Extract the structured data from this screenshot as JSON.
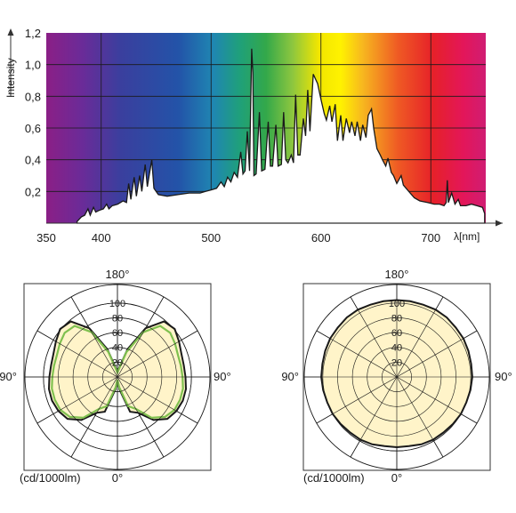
{
  "chart_data": [
    {
      "type": "area",
      "xlabel": "λ[nm]",
      "ylabel": "Intensity",
      "xlim": [
        350,
        750
      ],
      "ylim": [
        0,
        1.2
      ],
      "xticks": [
        "350",
        "400",
        "500",
        "600",
        "700"
      ],
      "xtick_values": [
        350,
        400,
        500,
        600,
        700
      ],
      "yticks": [
        "0,2",
        "0,4",
        "0,6",
        "0,8",
        "1,0",
        "1,2"
      ],
      "ytick_values": [
        0.2,
        0.4,
        0.6,
        0.8,
        1.0,
        1.2
      ],
      "grid": true,
      "background": "visible spectrum gradient",
      "series": [
        {
          "values": [
            [
              378,
              0.01
            ],
            [
              382,
              0.04
            ],
            [
              385,
              0.05
            ],
            [
              388,
              0.09
            ],
            [
              390,
              0.05
            ],
            [
              393,
              0.1
            ],
            [
              395,
              0.07
            ],
            [
              398,
              0.08
            ],
            [
              402,
              0.09
            ],
            [
              405,
              0.12
            ],
            [
              407,
              0.09
            ],
            [
              410,
              0.11
            ],
            [
              415,
              0.12
            ],
            [
              420,
              0.14
            ],
            [
              423,
              0.13
            ],
            [
              425,
              0.25
            ],
            [
              427,
              0.15
            ],
            [
              430,
              0.29
            ],
            [
              432,
              0.17
            ],
            [
              435,
              0.3
            ],
            [
              437,
              0.2
            ],
            [
              440,
              0.37
            ],
            [
              442,
              0.23
            ],
            [
              446,
              0.4
            ],
            [
              448,
              0.22
            ],
            [
              452,
              0.18
            ],
            [
              460,
              0.17
            ],
            [
              470,
              0.18
            ],
            [
              480,
              0.19
            ],
            [
              490,
              0.19
            ],
            [
              495,
              0.2
            ],
            [
              500,
              0.21
            ],
            [
              505,
              0.22
            ],
            [
              509,
              0.26
            ],
            [
              512,
              0.23
            ],
            [
              515,
              0.29
            ],
            [
              518,
              0.26
            ],
            [
              521,
              0.32
            ],
            [
              524,
              0.29
            ],
            [
              527,
              0.45
            ],
            [
              529,
              0.31
            ],
            [
              531,
              0.33
            ],
            [
              533,
              0.58
            ],
            [
              535,
              0.33
            ],
            [
              537,
              1.1
            ],
            [
              538,
              0.95
            ],
            [
              539,
              0.3
            ],
            [
              541,
              0.31
            ],
            [
              544,
              0.7
            ],
            [
              546,
              0.33
            ],
            [
              549,
              0.34
            ],
            [
              552,
              0.64
            ],
            [
              554,
              0.36
            ],
            [
              556,
              0.36
            ],
            [
              559,
              0.62
            ],
            [
              561,
              0.36
            ],
            [
              564,
              0.37
            ],
            [
              566,
              0.7
            ],
            [
              568,
              0.4
            ],
            [
              570,
              0.38
            ],
            [
              573,
              0.43
            ],
            [
              575,
              0.38
            ],
            [
              577,
              0.81
            ],
            [
              579,
              0.43
            ],
            [
              581,
              0.43
            ],
            [
              584,
              0.66
            ],
            [
              586,
              0.55
            ],
            [
              588,
              0.84
            ],
            [
              590,
              0.58
            ],
            [
              593,
              0.94
            ],
            [
              597,
              0.88
            ],
            [
              600,
              0.78
            ],
            [
              603,
              0.69
            ],
            [
              605,
              0.65
            ],
            [
              608,
              0.74
            ],
            [
              610,
              0.64
            ],
            [
              613,
              0.75
            ],
            [
              615,
              0.52
            ],
            [
              618,
              0.68
            ],
            [
              620,
              0.52
            ],
            [
              623,
              0.66
            ],
            [
              626,
              0.57
            ],
            [
              628,
              0.64
            ],
            [
              631,
              0.55
            ],
            [
              633,
              0.64
            ],
            [
              636,
              0.52
            ],
            [
              638,
              0.62
            ],
            [
              641,
              0.54
            ],
            [
              643,
              0.68
            ],
            [
              646,
              0.72
            ],
            [
              648,
              0.6
            ],
            [
              651,
              0.47
            ],
            [
              654,
              0.43
            ],
            [
              656,
              0.4
            ],
            [
              659,
              0.36
            ],
            [
              661,
              0.41
            ],
            [
              664,
              0.32
            ],
            [
              666,
              0.3
            ],
            [
              669,
              0.25
            ],
            [
              673,
              0.3
            ],
            [
              675,
              0.24
            ],
            [
              680,
              0.2
            ],
            [
              685,
              0.16
            ],
            [
              690,
              0.14
            ],
            [
              697,
              0.13
            ],
            [
              703,
              0.12
            ],
            [
              708,
              0.12
            ],
            [
              712,
              0.11
            ],
            [
              714,
              0.13
            ],
            [
              715,
              0.27
            ],
            [
              716,
              0.13
            ],
            [
              719,
              0.19
            ],
            [
              722,
              0.12
            ],
            [
              725,
              0.15
            ],
            [
              727,
              0.11
            ],
            [
              732,
              0.11
            ],
            [
              737,
              0.12
            ],
            [
              742,
              0.11
            ],
            [
              747,
              0.1
            ],
            [
              749,
              0.06
            ]
          ]
        }
      ]
    },
    {
      "type": "polar",
      "rlim": [
        0,
        100
      ],
      "ring_labels": [
        "20",
        "40",
        "60",
        "80",
        "100"
      ],
      "ring_values": [
        20,
        40,
        60,
        80,
        100
      ],
      "angle_labels": {
        "top": "180°",
        "left": "90°",
        "right": "90°",
        "bottom": "0°"
      },
      "unit": "(cd/1000lm)",
      "colors": {
        "fill": "#fff3c4",
        "curve_black": "#1a1a1a",
        "curve_green": "#7fc04f"
      },
      "series": [
        {
          "color": "black",
          "angle_deg": [
            0,
            10,
            20,
            30,
            40,
            50,
            60,
            70,
            80,
            90,
            100,
            110,
            120,
            130,
            140,
            150,
            160,
            170,
            180
          ],
          "values": [
            4,
            18,
            50,
            56,
            76,
            88,
            92,
            94,
            94,
            92,
            91,
            92,
            96,
            101,
            98,
            76,
            40,
            12,
            6
          ]
        },
        {
          "color": "green",
          "angle_deg": [
            0,
            10,
            20,
            30,
            40,
            50,
            60,
            70,
            80,
            90,
            100,
            110,
            120,
            130,
            140,
            150,
            160,
            170,
            180
          ],
          "values": [
            4,
            14,
            42,
            50,
            72,
            84,
            89,
            90,
            90,
            88,
            87,
            87,
            90,
            93,
            90,
            70,
            36,
            10,
            6
          ]
        }
      ]
    },
    {
      "type": "polar",
      "rlim": [
        0,
        100
      ],
      "ring_labels": [
        "20",
        "40",
        "60",
        "80",
        "100"
      ],
      "ring_values": [
        20,
        40,
        60,
        80,
        100
      ],
      "angle_labels": {
        "top": "180°",
        "left": "90°",
        "right": "90°",
        "bottom": "0°"
      },
      "unit": "(cd/1000lm)",
      "colors": {
        "fill": "#fff3c4",
        "curve_black": "#1a1a1a"
      },
      "series": [
        {
          "color": "black",
          "angle_deg": [
            0,
            10,
            20,
            30,
            40,
            50,
            60,
            70,
            80,
            90,
            100,
            110,
            120,
            130,
            140,
            150,
            160,
            170,
            180
          ],
          "values": [
            95,
            95,
            97,
            98,
            98,
            99,
            100,
            100,
            101,
            102,
            102,
            103,
            104,
            104,
            105,
            105,
            104,
            104,
            104
          ]
        }
      ]
    }
  ]
}
